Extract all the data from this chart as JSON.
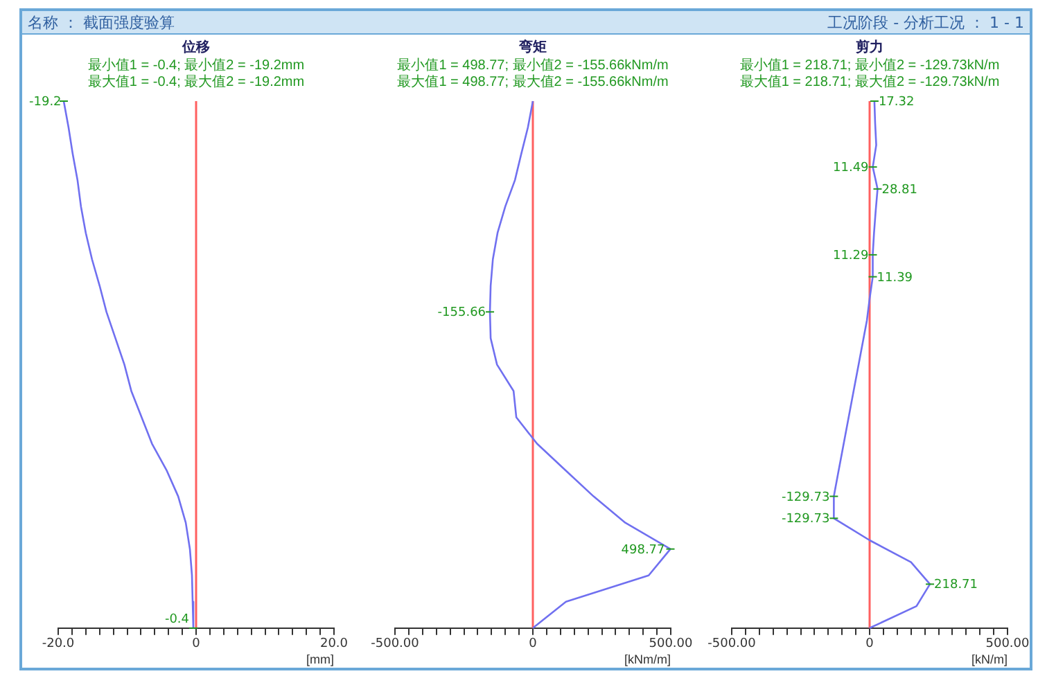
{
  "chart_data": [
    {
      "type": "line",
      "orientation": "horizontal",
      "title": "位移",
      "subtitle": "最小值1 = -0.4; 最小值2 = -19.2mm\n最大值1 = -0.4; 最大值2 = -19.2mm",
      "xlabel": "[mm]",
      "annotations": [
        "名称 ： 截面强度验算"
      ],
      "categories": [
        null,
        null,
        null,
        null,
        null,
        null,
        null,
        null,
        null,
        null,
        null,
        null,
        null,
        null,
        null,
        null,
        null,
        null,
        null,
        null,
        null
      ],
      "series": [
        {
          "color": "#7070f0",
          "values": [
            -19.2,
            -18.5,
            -17.9,
            -17.2,
            -16.7,
            -16.0,
            -15.1,
            -14.0,
            -13.0,
            -11.7,
            -10.4,
            -9.4,
            -7.9,
            -6.4,
            -4.3,
            -2.6,
            -1.5,
            -0.9,
            -0.6,
            -0.5,
            -0.4
          ],
          "value_labels": [
            "-19.2",
            null,
            null,
            null,
            null,
            null,
            null,
            null,
            null,
            null,
            null,
            null,
            null,
            null,
            null,
            null,
            null,
            null,
            null,
            null,
            "-0.4"
          ]
        }
      ],
      "xlim": [
        -20,
        20
      ],
      "xticks": [
        {
          "value": -20,
          "label": "-20.0"
        },
        {
          "value": -18,
          "label": null
        },
        {
          "value": -16,
          "label": null
        },
        {
          "value": -14,
          "label": null
        },
        {
          "value": -12,
          "label": null
        },
        {
          "value": -10,
          "label": null
        },
        {
          "value": -8,
          "label": null
        },
        {
          "value": -6,
          "label": null
        },
        {
          "value": -4,
          "label": null
        },
        {
          "value": -2,
          "label": null
        },
        {
          "value": 0,
          "label": "0"
        },
        {
          "value": 2,
          "label": null
        },
        {
          "value": 4,
          "label": null
        },
        {
          "value": 6,
          "label": null
        },
        {
          "value": 8,
          "label": null
        },
        {
          "value": 10,
          "label": null
        },
        {
          "value": 12,
          "label": null
        },
        {
          "value": 14,
          "label": null
        },
        {
          "value": 16,
          "label": null
        },
        {
          "value": 18,
          "label": null
        },
        {
          "value": 20,
          "label": "20.0"
        }
      ],
      "ref_lines": [
        {
          "axis": "x",
          "value": 0,
          "color": "#ff6060"
        }
      ],
      "tick_labels": "x",
      "grid": false,
      "legend": false
    },
    {
      "type": "line",
      "orientation": "horizontal",
      "title": "弯矩",
      "subtitle": "最小值1 = 498.77; 最小值2 = -155.66kNm/m\n最大值1 = 498.77; 最大值2 = -155.66kNm/m",
      "xlabel": "[kNm/m]",
      "categories": [
        null,
        null,
        null,
        null,
        null,
        null,
        null,
        null,
        null,
        null,
        null,
        null,
        null,
        null,
        null,
        null,
        null,
        null,
        null,
        null,
        null
      ],
      "series": [
        {
          "color": "#7070f0",
          "values": [
            0,
            -18,
            -42,
            -65,
            -100,
            -128,
            -145,
            -153,
            -155.66,
            -153,
            -130,
            -70,
            -60,
            15,
            117,
            220,
            335,
            498.77,
            420,
            120,
            0
          ],
          "value_labels": [
            null,
            null,
            null,
            null,
            null,
            null,
            null,
            null,
            "-155.66",
            null,
            null,
            null,
            null,
            null,
            null,
            null,
            null,
            "498.77",
            null,
            null,
            null
          ]
        }
      ],
      "xlim": [
        -500,
        500
      ],
      "xticks": [
        {
          "value": -500,
          "label": "-500.00"
        },
        {
          "value": -450,
          "label": null
        },
        {
          "value": -400,
          "label": null
        },
        {
          "value": -350,
          "label": null
        },
        {
          "value": -300,
          "label": null
        },
        {
          "value": -250,
          "label": null
        },
        {
          "value": -200,
          "label": null
        },
        {
          "value": -150,
          "label": null
        },
        {
          "value": -100,
          "label": null
        },
        {
          "value": -50,
          "label": null
        },
        {
          "value": 0,
          "label": "0"
        },
        {
          "value": 50,
          "label": null
        },
        {
          "value": 100,
          "label": null
        },
        {
          "value": 150,
          "label": null
        },
        {
          "value": 200,
          "label": null
        },
        {
          "value": 250,
          "label": null
        },
        {
          "value": 300,
          "label": null
        },
        {
          "value": 350,
          "label": null
        },
        {
          "value": 400,
          "label": null
        },
        {
          "value": 450,
          "label": null
        },
        {
          "value": 500,
          "label": "500.00"
        }
      ],
      "ref_lines": [
        {
          "axis": "x",
          "value": 0,
          "color": "#ff6060"
        }
      ],
      "tick_labels": "x",
      "grid": false,
      "legend": false
    },
    {
      "type": "line",
      "orientation": "horizontal",
      "title": "剪力",
      "subtitle": "最小值1 = 218.71; 最小值2 = -129.73kN/m\n最大值1 = 218.71; 最大值2 = -129.73kN/m",
      "xlabel": "[kN/m]",
      "annotations": [
        "工况阶段 - 分析工况 ： 1 - 1"
      ],
      "categories": [
        null,
        null,
        null,
        null,
        null,
        null,
        null,
        null,
        null,
        null,
        null,
        null,
        null,
        null,
        null,
        null,
        null,
        null,
        null,
        null,
        null,
        null,
        null,
        null,
        null
      ],
      "series": [
        {
          "color": "#7070f0",
          "values": [
            17.32,
            20,
            24,
            11.49,
            28.81,
            22,
            16,
            11.29,
            11.39,
            0,
            -10,
            -25,
            -40,
            -55,
            -70,
            -85,
            -100,
            -115,
            -129.73,
            -129.73,
            0,
            150,
            218.71,
            170,
            0
          ],
          "value_labels": [
            "17.32",
            null,
            null,
            "11.49",
            "28.81",
            null,
            null,
            "11.29",
            "11.39",
            null,
            null,
            null,
            null,
            null,
            null,
            null,
            null,
            null,
            "-129.73",
            "-129.73",
            null,
            null,
            "218.71",
            null,
            null
          ]
        }
      ],
      "xlim": [
        -500,
        500
      ],
      "xticks": [
        {
          "value": -500,
          "label": "-500.00"
        },
        {
          "value": -450,
          "label": null
        },
        {
          "value": -400,
          "label": null
        },
        {
          "value": -350,
          "label": null
        },
        {
          "value": -300,
          "label": null
        },
        {
          "value": -250,
          "label": null
        },
        {
          "value": -200,
          "label": null
        },
        {
          "value": -150,
          "label": null
        },
        {
          "value": -100,
          "label": null
        },
        {
          "value": -50,
          "label": null
        },
        {
          "value": 0,
          "label": "0"
        },
        {
          "value": 50,
          "label": null
        },
        {
          "value": 100,
          "label": null
        },
        {
          "value": 150,
          "label": null
        },
        {
          "value": 200,
          "label": null
        },
        {
          "value": 250,
          "label": null
        },
        {
          "value": 300,
          "label": null
        },
        {
          "value": 350,
          "label": null
        },
        {
          "value": 400,
          "label": null
        },
        {
          "value": 450,
          "label": null
        },
        {
          "value": 500,
          "label": "500.00"
        }
      ],
      "ref_lines": [
        {
          "axis": "x",
          "value": 0,
          "color": "#ff6060"
        }
      ],
      "tick_labels": "x",
      "grid": false,
      "legend": false
    }
  ]
}
